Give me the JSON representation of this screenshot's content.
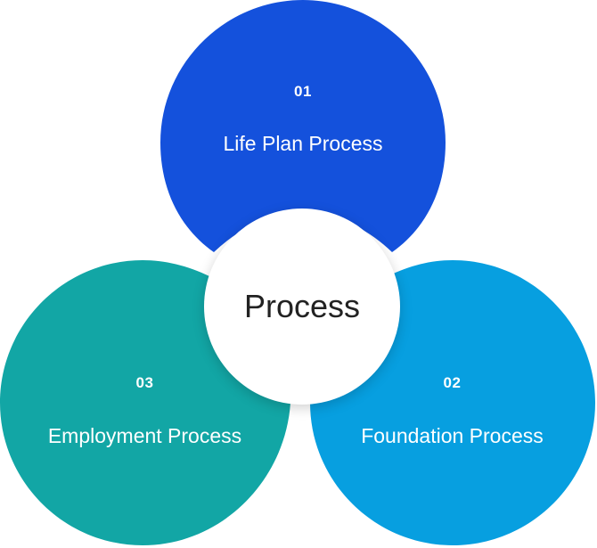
{
  "center": {
    "label": "Process"
  },
  "steps": [
    {
      "number": "01",
      "label": "Life Plan Process",
      "color": "#1451dc"
    },
    {
      "number": "02",
      "label": "Foundation Process",
      "color": "#079fe0"
    },
    {
      "number": "03",
      "label": "Employment Process",
      "color": "#12a6a5"
    }
  ]
}
